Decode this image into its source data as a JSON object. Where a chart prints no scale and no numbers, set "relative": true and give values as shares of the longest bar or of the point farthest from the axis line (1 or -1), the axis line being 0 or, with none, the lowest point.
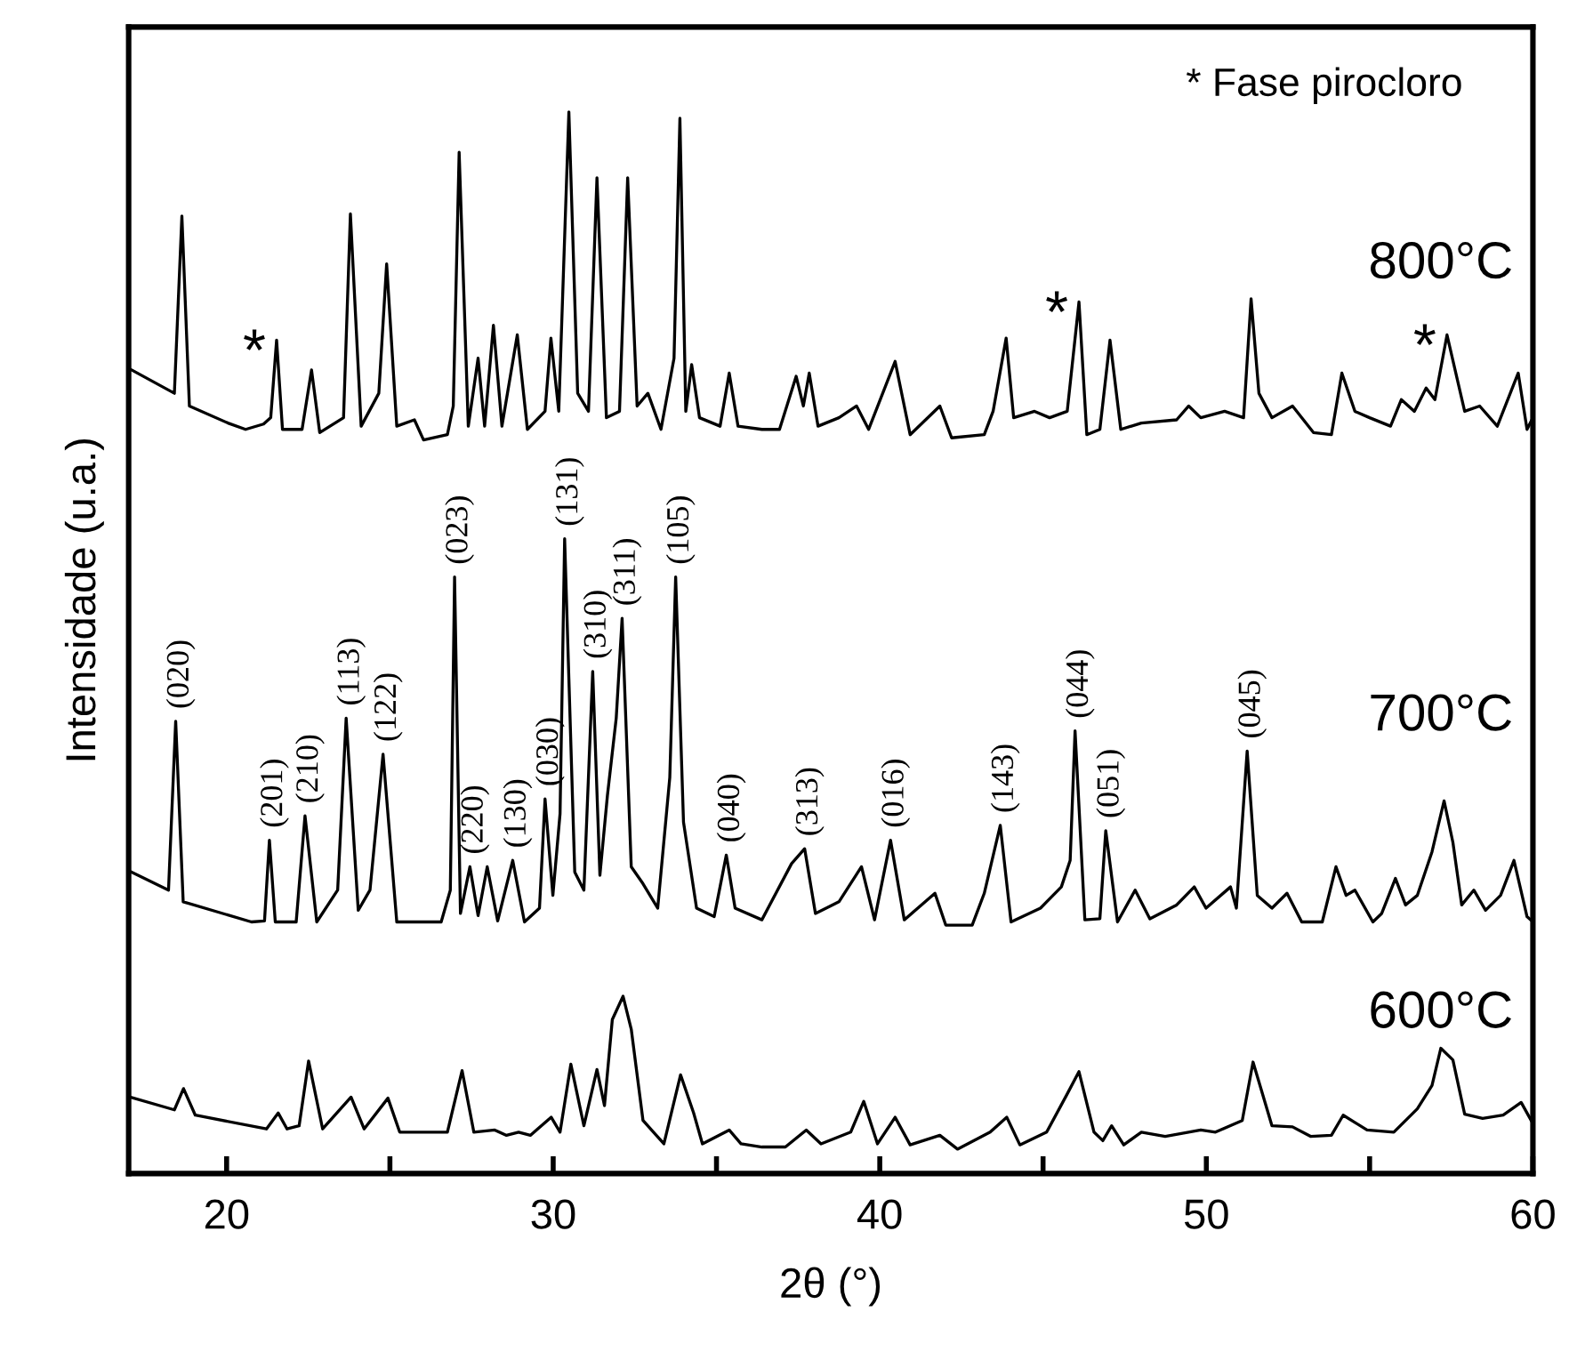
{
  "chart_data": {
    "type": "line",
    "relative": true,
    "xlabel": "2θ (°)",
    "ylabel": "Intensidade (u.a.)",
    "xlim": [
      17,
      60
    ],
    "xticks": [
      20,
      {
        "value": 25,
        "label": null
      },
      30,
      {
        "value": 35,
        "label": null
      },
      40,
      {
        "value": 45,
        "label": null
      },
      50,
      {
        "value": 55,
        "label": null
      },
      60
    ],
    "tick_labels": "x",
    "grid": false,
    "legend": false,
    "marker": "none",
    "line_style": "solid",
    "series": [
      {
        "name": "600°C",
        "color": "#000000",
        "x": [
          17.04,
          18.4,
          18.68,
          19.04,
          21.22,
          21.58,
          21.85,
          22.22,
          22.51,
          22.94,
          23.81,
          24.21,
          24.94,
          25.3,
          26.76,
          27.21,
          27.57,
          28.21,
          28.57,
          28.94,
          29.3,
          29.94,
          30.21,
          30.54,
          30.94,
          31.34,
          31.57,
          31.81,
          32.14,
          32.39,
          32.75,
          33.39,
          33.9,
          34.3,
          34.57,
          35.39,
          35.75,
          36.39,
          37.11,
          37.75,
          38.2,
          39.11,
          39.51,
          39.93,
          40.47,
          40.93,
          41.84,
          42.38,
          43.38,
          43.89,
          44.29,
          45.11,
          45.74,
          46.1,
          46.56,
          46.83,
          47.1,
          47.47,
          48.01,
          48.74,
          49.83,
          50.28,
          51.1,
          51.43,
          52.01,
          52.64,
          53.19,
          53.83,
          54.19,
          54.92,
          55.74,
          56.46,
          56.91,
          57.18,
          57.55,
          57.91,
          58.46,
          59.09,
          59.64,
          60.0
        ],
        "values": [
          0.072,
          0.06,
          0.08,
          0.055,
          0.042,
          0.057,
          0.042,
          0.045,
          0.106,
          0.042,
          0.072,
          0.042,
          0.071,
          0.039,
          0.039,
          0.097,
          0.039,
          0.041,
          0.036,
          0.039,
          0.036,
          0.053,
          0.039,
          0.103,
          0.045,
          0.098,
          0.064,
          0.145,
          0.167,
          0.136,
          0.05,
          0.028,
          0.093,
          0.057,
          0.028,
          0.041,
          0.028,
          0.025,
          0.025,
          0.041,
          0.028,
          0.039,
          0.068,
          0.028,
          0.053,
          0.027,
          0.036,
          0.023,
          0.039,
          0.053,
          0.027,
          0.039,
          0.075,
          0.096,
          0.039,
          0.031,
          0.045,
          0.027,
          0.039,
          0.035,
          0.041,
          0.039,
          0.05,
          0.105,
          0.045,
          0.044,
          0.035,
          0.036,
          0.055,
          0.041,
          0.039,
          0.061,
          0.083,
          0.118,
          0.107,
          0.056,
          0.052,
          0.055,
          0.067,
          0.047
        ]
      },
      {
        "name": "700°C",
        "color": "#000000",
        "x": [
          17.09,
          18.22,
          18.44,
          18.67,
          20.76,
          21.16,
          21.31,
          21.49,
          22.13,
          22.4,
          22.76,
          23.4,
          23.66,
          24.03,
          24.39,
          24.79,
          25.21,
          26.57,
          26.85,
          26.98,
          27.16,
          27.45,
          27.7,
          27.98,
          28.3,
          28.76,
          29.12,
          29.58,
          29.75,
          29.99,
          30.21,
          30.35,
          30.66,
          30.94,
          31.21,
          31.43,
          31.66,
          31.93,
          32.11,
          32.39,
          32.75,
          33.2,
          33.57,
          33.75,
          33.99,
          34.39,
          34.93,
          35.3,
          35.57,
          36.39,
          37.3,
          37.7,
          38.03,
          38.75,
          39.44,
          39.84,
          40.33,
          40.75,
          41.69,
          42.02,
          42.83,
          43.2,
          43.69,
          44.02,
          44.92,
          45.56,
          45.83,
          45.98,
          46.28,
          46.74,
          46.92,
          47.28,
          47.82,
          48.27,
          49.09,
          49.63,
          49.99,
          50.74,
          50.92,
          51.25,
          51.56,
          52.01,
          52.47,
          52.92,
          53.55,
          53.97,
          54.28,
          54.55,
          55.1,
          55.37,
          55.79,
          56.1,
          56.46,
          56.91,
          57.28,
          57.55,
          57.82,
          58.19,
          58.55,
          59.01,
          59.42,
          59.82,
          60.0
        ],
        "values": [
          0.284,
          0.267,
          0.426,
          0.256,
          0.237,
          0.238,
          0.314,
          0.237,
          0.237,
          0.337,
          0.237,
          0.267,
          0.429,
          0.248,
          0.267,
          0.395,
          0.237,
          0.237,
          0.267,
          0.562,
          0.245,
          0.289,
          0.243,
          0.289,
          0.238,
          0.295,
          0.237,
          0.25,
          0.353,
          0.262,
          0.339,
          0.598,
          0.284,
          0.267,
          0.473,
          0.281,
          0.356,
          0.429,
          0.523,
          0.289,
          0.273,
          0.25,
          0.373,
          0.562,
          0.331,
          0.25,
          0.242,
          0.3,
          0.25,
          0.239,
          0.292,
          0.306,
          0.245,
          0.256,
          0.289,
          0.239,
          0.314,
          0.239,
          0.264,
          0.234,
          0.234,
          0.264,
          0.328,
          0.237,
          0.25,
          0.27,
          0.295,
          0.417,
          0.239,
          0.24,
          0.323,
          0.237,
          0.267,
          0.24,
          0.253,
          0.27,
          0.25,
          0.27,
          0.25,
          0.398,
          0.262,
          0.25,
          0.264,
          0.237,
          0.237,
          0.289,
          0.262,
          0.267,
          0.237,
          0.245,
          0.278,
          0.253,
          0.262,
          0.303,
          0.351,
          0.312,
          0.253,
          0.267,
          0.248,
          0.262,
          0.295,
          0.242,
          0.237
        ]
      },
      {
        "name": "800°C",
        "color": "#000000",
        "x": [
          17.09,
          18.4,
          18.63,
          18.86,
          20.04,
          20.58,
          21.13,
          21.35,
          21.53,
          21.71,
          22.31,
          22.6,
          22.85,
          23.58,
          23.79,
          24.12,
          24.66,
          24.9,
          25.21,
          25.75,
          26.03,
          26.76,
          26.94,
          27.12,
          27.4,
          27.7,
          27.9,
          28.17,
          28.43,
          28.9,
          29.21,
          29.75,
          29.93,
          30.17,
          30.48,
          30.75,
          31.08,
          31.34,
          31.63,
          32.03,
          32.28,
          32.57,
          32.9,
          33.3,
          33.7,
          33.88,
          34.06,
          34.24,
          34.48,
          35.11,
          35.39,
          35.66,
          36.39,
          36.93,
          37.44,
          37.66,
          37.84,
          38.11,
          38.75,
          39.29,
          39.66,
          40.47,
          40.93,
          41.84,
          42.2,
          43.2,
          43.47,
          43.87,
          44.1,
          44.74,
          45.2,
          45.74,
          46.1,
          46.34,
          46.74,
          47.05,
          47.38,
          48.01,
          49.09,
          49.46,
          49.83,
          50.56,
          51.14,
          51.37,
          51.61,
          52.01,
          52.64,
          53.28,
          53.83,
          54.15,
          54.55,
          55.0,
          55.64,
          55.97,
          56.37,
          56.73,
          57.0,
          57.37,
          57.91,
          58.37,
          58.91,
          59.55,
          59.82,
          60.0
        ],
        "values": [
          0.757,
          0.735,
          0.902,
          0.723,
          0.707,
          0.701,
          0.706,
          0.712,
          0.785,
          0.701,
          0.701,
          0.757,
          0.698,
          0.712,
          0.904,
          0.704,
          0.735,
          0.857,
          0.704,
          0.71,
          0.691,
          0.696,
          0.723,
          0.962,
          0.704,
          0.768,
          0.704,
          0.799,
          0.704,
          0.79,
          0.701,
          0.718,
          0.787,
          0.718,
          1.0,
          0.735,
          0.718,
          0.938,
          0.712,
          0.718,
          0.938,
          0.723,
          0.735,
          0.701,
          0.768,
          0.994,
          0.718,
          0.762,
          0.712,
          0.704,
          0.754,
          0.704,
          0.701,
          0.701,
          0.751,
          0.723,
          0.754,
          0.704,
          0.712,
          0.723,
          0.701,
          0.765,
          0.696,
          0.723,
          0.693,
          0.696,
          0.718,
          0.787,
          0.712,
          0.718,
          0.712,
          0.718,
          0.821,
          0.696,
          0.701,
          0.785,
          0.701,
          0.707,
          0.71,
          0.723,
          0.712,
          0.718,
          0.712,
          0.824,
          0.735,
          0.712,
          0.723,
          0.698,
          0.696,
          0.754,
          0.718,
          0.712,
          0.704,
          0.729,
          0.718,
          0.74,
          0.729,
          0.79,
          0.718,
          0.723,
          0.704,
          0.754,
          0.701,
          0.712
        ]
      }
    ],
    "annotations": [
      "* Fase pirocloro",
      {
        "text": "(020)",
        "x": 18.44,
        "y": 0.426
      },
      {
        "text": "(201)",
        "x": 21.31,
        "y": 0.314
      },
      {
        "text": "(210)",
        "x": 22.4,
        "y": 0.337
      },
      {
        "text": "(113)",
        "x": 23.66,
        "y": 0.429
      },
      {
        "text": "(122)",
        "x": 24.79,
        "y": 0.395
      },
      {
        "text": "(023)",
        "x": 26.98,
        "y": 0.562
      },
      {
        "text": "(220)",
        "x": 27.45,
        "y": 0.289
      },
      {
        "text": "(130)",
        "x": 28.76,
        "y": 0.295
      },
      {
        "text": "(030)",
        "x": 29.75,
        "y": 0.353
      },
      {
        "text": "(131)",
        "x": 30.35,
        "y": 0.598
      },
      {
        "text": "(310)",
        "x": 31.21,
        "y": 0.473
      },
      {
        "text": "(311)",
        "x": 32.11,
        "y": 0.523
      },
      {
        "text": "(105)",
        "x": 33.75,
        "y": 0.562
      },
      {
        "text": "(040)",
        "x": 35.3,
        "y": 0.3
      },
      {
        "text": "(313)",
        "x": 37.7,
        "y": 0.306
      },
      {
        "text": "(016)",
        "x": 40.33,
        "y": 0.314
      },
      {
        "text": "(143)",
        "x": 43.69,
        "y": 0.328
      },
      {
        "text": "(044)",
        "x": 45.98,
        "y": 0.417
      },
      {
        "text": "(051)",
        "x": 46.92,
        "y": 0.323
      },
      {
        "text": "(045)",
        "x": 51.25,
        "y": 0.398
      },
      {
        "text": "*",
        "x": 21.53,
        "y": 0.785
      },
      {
        "text": "*",
        "x": 46.1,
        "y": 0.821
      },
      {
        "text": "*",
        "x": 57.37,
        "y": 0.79
      }
    ]
  }
}
